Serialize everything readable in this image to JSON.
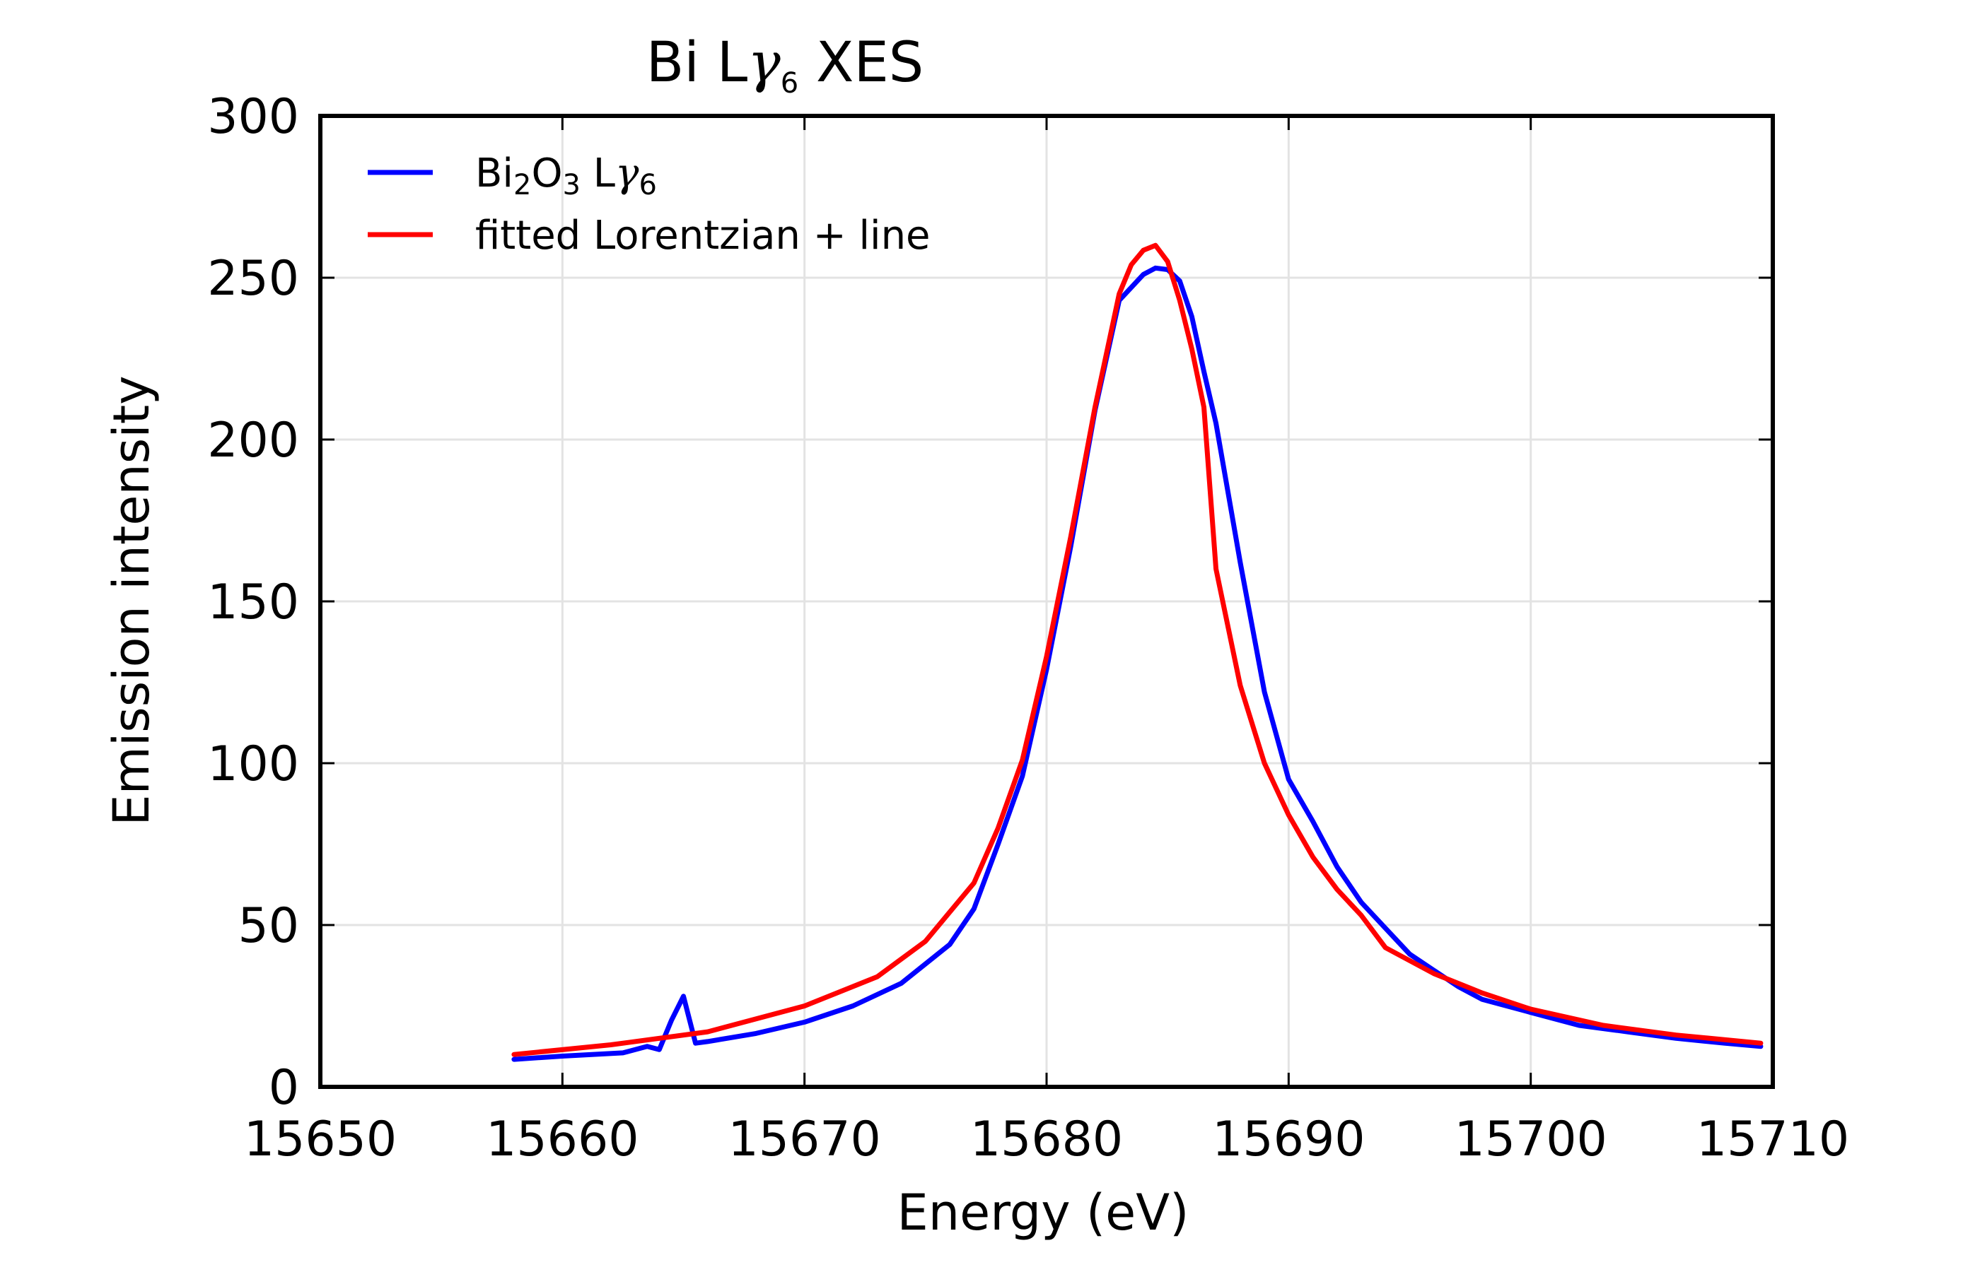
{
  "chart_data": {
    "type": "line",
    "title": {
      "prefix": "Bi L",
      "symbol": "γ",
      "subscript": "6",
      "suffix": " XES"
    },
    "xlabel": "Energy (eV)",
    "ylabel": "Emission intensity",
    "xlim": [
      15650,
      15710
    ],
    "ylim": [
      0,
      300
    ],
    "xticks": [
      "15650",
      "15660",
      "15670",
      "15680",
      "15690",
      "15700",
      "15710"
    ],
    "yticks": [
      "0",
      "50",
      "100",
      "150",
      "200",
      "250",
      "300"
    ],
    "grid": true,
    "legend_position": "top-left",
    "series": [
      {
        "id": "measured",
        "name": "Bi2O3 Lγ6",
        "legend": {
          "a": "Bi",
          "a_sub": "2",
          "b": "O",
          "b_sub": "3",
          "c": " L",
          "symbol": "γ",
          "symbol_sub": "6"
        },
        "color": "#0000ff",
        "x": [
          15658,
          15660,
          15662.5,
          15663.5,
          15664,
          15664.5,
          15665,
          15665.5,
          15666,
          15668,
          15670,
          15672,
          15674,
          15676,
          15677,
          15678,
          15679,
          15680,
          15681,
          15682,
          15683,
          15683.5,
          15684,
          15684.5,
          15685,
          15685.5,
          15686,
          15686.5,
          15687,
          15688,
          15689,
          15690,
          15691,
          15692,
          15693,
          15694,
          15695,
          15696,
          15697,
          15698,
          15700,
          15702,
          15704,
          15706,
          15708,
          15709.5
        ],
        "y": [
          8.5,
          9.5,
          10.5,
          12.5,
          11.5,
          20.5,
          28,
          13.5,
          14,
          16.5,
          20,
          25,
          32,
          44,
          55,
          75,
          96,
          129,
          167,
          209,
          243,
          247,
          251,
          253,
          252.5,
          249,
          238,
          221,
          205,
          162,
          122,
          95,
          82,
          68,
          57,
          49,
          41,
          36,
          31,
          27,
          23,
          19,
          17,
          15,
          13.5,
          12.5
        ]
      },
      {
        "id": "fit",
        "name": "fitted Lorentzian + line",
        "color": "#ff0000",
        "x": [
          15658,
          15662,
          15666,
          15670,
          15673,
          15675,
          15677,
          15678,
          15679,
          15680,
          15681,
          15682,
          15683,
          15683.5,
          15684,
          15684.5,
          15685,
          15685.5,
          15686,
          15686.5,
          15687,
          15688,
          15689,
          15690,
          15691,
          15692,
          15693,
          15694,
          15696,
          15698,
          15700,
          15703,
          15706,
          15709.5
        ],
        "y": [
          10,
          13,
          17,
          25,
          34,
          45,
          63,
          80,
          101,
          133,
          170,
          210,
          245,
          254,
          258.5,
          260,
          255,
          243,
          228,
          210,
          160,
          124,
          100,
          84,
          71,
          61,
          53,
          43,
          35,
          29,
          24,
          19,
          16,
          13.5
        ]
      }
    ]
  }
}
